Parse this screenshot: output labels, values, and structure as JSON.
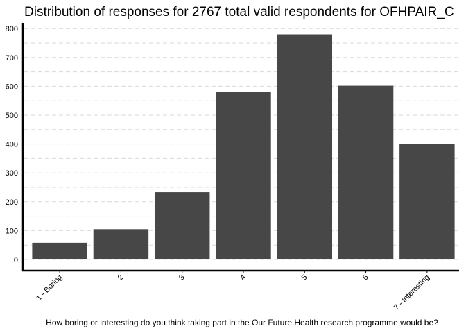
{
  "chart_data": {
    "type": "bar",
    "title": "Distribution of responses for 2767 total valid respondents for OFHPAIR_C",
    "xlabel": "How boring or interesting do you think taking part in the Our Future Health research programme would be?",
    "ylabel": "",
    "categories": [
      "1 - Boring",
      "2",
      "3",
      "4",
      "5",
      "6",
      "7 - Interesting"
    ],
    "values": [
      58,
      105,
      233,
      580,
      780,
      602,
      400
    ],
    "ylim": [
      0,
      810
    ],
    "yticks": [
      0,
      100,
      200,
      300,
      400,
      500,
      600,
      700,
      800
    ],
    "grid": true,
    "bar_color": "#474747",
    "grid_color": "#d9d9d9"
  }
}
